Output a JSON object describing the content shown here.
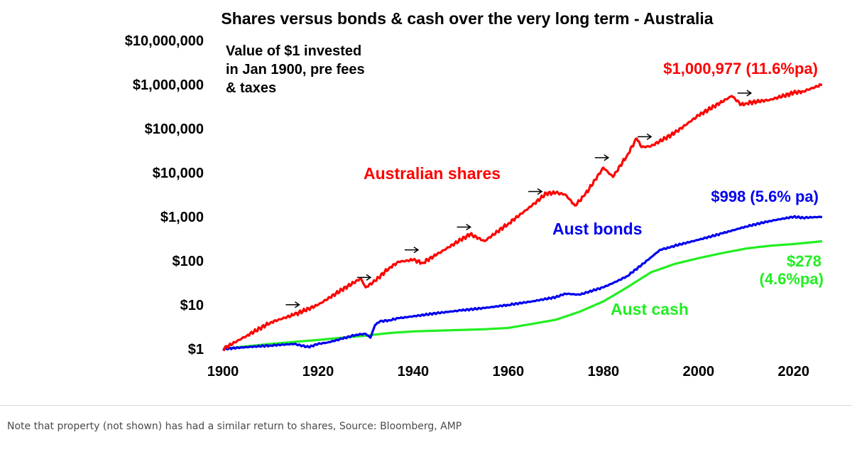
{
  "chart_data": {
    "type": "line",
    "title": "Shares versus bonds & cash over the very long term - Australia",
    "annotation_lines": [
      "Value of $1 invested",
      "in Jan 1900, pre fees",
      "& taxes"
    ],
    "y_scale": "log",
    "ylim": [
      1,
      10000000
    ],
    "xlim": [
      1900,
      2026
    ],
    "y_tick_values": [
      1,
      10,
      100,
      1000,
      10000,
      100000,
      1000000,
      10000000
    ],
    "y_tick_labels": [
      "$1",
      "$10",
      "$100",
      "$1,000",
      "$10,000",
      "$100,000",
      "$1,000,000",
      "$10,000,000"
    ],
    "x_tick_values": [
      1900,
      1920,
      1940,
      1960,
      1980,
      2000,
      2020
    ],
    "x_tick_labels": [
      "1900",
      "1920",
      "1940",
      "1960",
      "1980",
      "2000",
      "2020"
    ],
    "grid": false,
    "legend": "none",
    "series": [
      {
        "name": "Australian shares",
        "color": "#ff0000",
        "end_label": "$1,000,977 (11.6%pa)",
        "x": [
          1900,
          1905,
          1910,
          1915,
          1920,
          1925,
          1929,
          1930,
          1932,
          1935,
          1937,
          1940,
          1942,
          1945,
          1950,
          1952,
          1955,
          1960,
          1965,
          1968,
          1970,
          1972,
          1974,
          1976,
          1980,
          1982,
          1985,
          1987,
          1988,
          1990,
          1995,
          2000,
          2007,
          2009,
          2010,
          2015,
          2020,
          2022,
          2026
        ],
        "y": [
          1,
          2,
          4,
          6,
          10,
          22,
          40,
          25,
          35,
          70,
          95,
          105,
          90,
          140,
          300,
          400,
          280,
          700,
          1800,
          3400,
          3500,
          3200,
          1800,
          3000,
          13000,
          8000,
          25000,
          60000,
          38000,
          40000,
          80000,
          200000,
          550000,
          350000,
          380000,
          450000,
          650000,
          700000,
          1000977
        ]
      },
      {
        "name": "Aust bonds",
        "color": "#0000ee",
        "end_label": "$998 (5.6% pa)",
        "x": [
          1900,
          1905,
          1910,
          1915,
          1918,
          1920,
          1922,
          1925,
          1928,
          1930,
          1931,
          1932,
          1933,
          1935,
          1937,
          1940,
          1945,
          1950,
          1955,
          1960,
          1965,
          1970,
          1972,
          1975,
          1977,
          1980,
          1983,
          1985,
          1988,
          1990,
          1992,
          1994,
          1995,
          2000,
          2005,
          2010,
          2015,
          2020,
          2022,
          2026
        ],
        "y": [
          1,
          1.1,
          1.2,
          1.3,
          1.1,
          1.3,
          1.4,
          1.7,
          2.1,
          2.2,
          1.8,
          3.5,
          4.2,
          4.5,
          5,
          5.5,
          6.5,
          7.5,
          8.5,
          10,
          12,
          15,
          18,
          17,
          20,
          25,
          35,
          45,
          80,
          120,
          180,
          200,
          220,
          300,
          420,
          600,
          800,
          1000,
          950,
          998
        ]
      },
      {
        "name": "Aust cash",
        "color": "#22ee22",
        "end_label": "$278",
        "end_label_2": "(4.6%pa)",
        "x": [
          1900,
          1905,
          1910,
          1915,
          1920,
          1925,
          1930,
          1935,
          1940,
          1945,
          1950,
          1955,
          1960,
          1965,
          1970,
          1975,
          1980,
          1985,
          1990,
          1995,
          2000,
          2005,
          2010,
          2015,
          2020,
          2026
        ],
        "y": [
          1,
          1.15,
          1.3,
          1.45,
          1.6,
          1.8,
          2.0,
          2.3,
          2.5,
          2.6,
          2.7,
          2.8,
          3.0,
          3.7,
          4.6,
          7,
          12,
          25,
          55,
          85,
          115,
          150,
          190,
          220,
          240,
          278
        ]
      }
    ],
    "series_labels": [
      "Australian shares",
      "Aust bonds",
      "Aust cash"
    ]
  },
  "footnote": "Note that property (not shown) has had a similar return to shares, Source: Bloomberg, AMP"
}
